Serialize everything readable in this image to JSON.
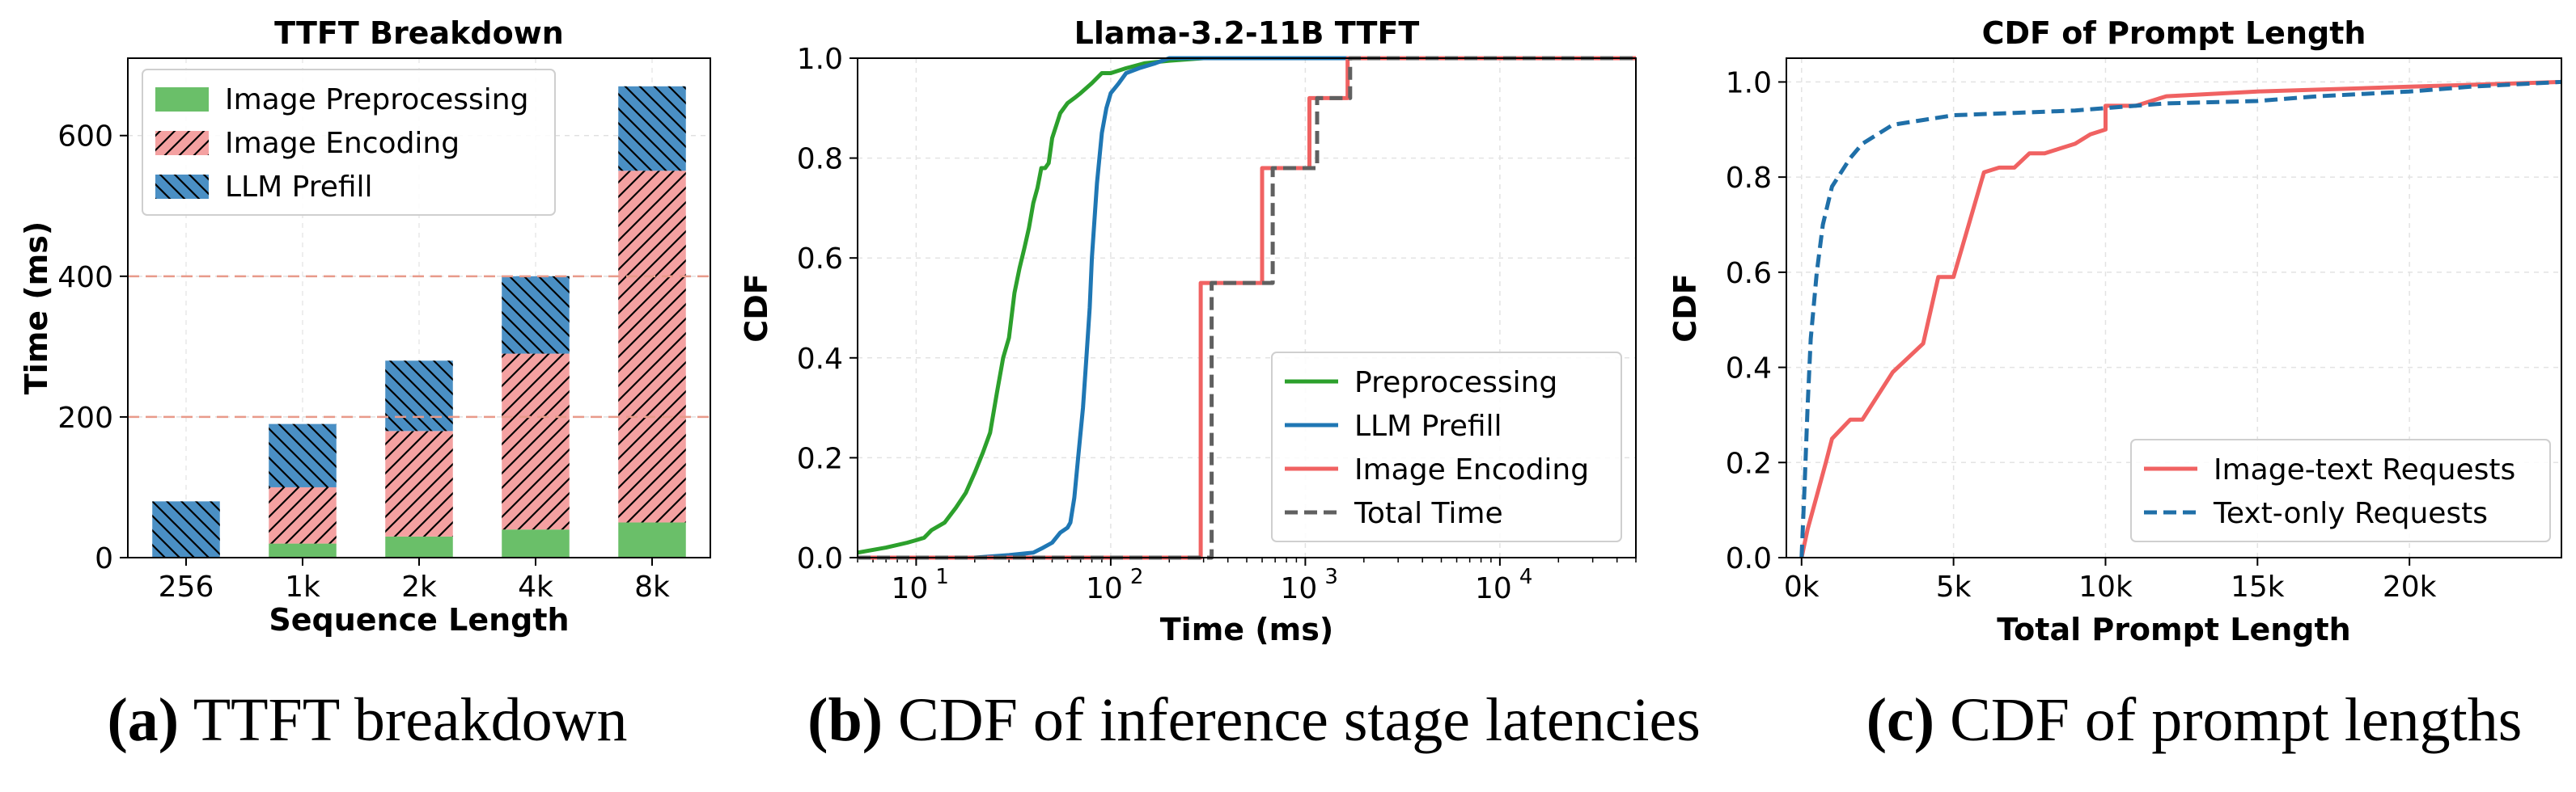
{
  "chart_data": [
    {
      "type": "bar",
      "stacked": true,
      "title": "TTFT Breakdown",
      "xlabel": "Sequence Length",
      "ylabel": "Time (ms)",
      "ylim": [
        0,
        710
      ],
      "yticks": [
        0,
        200,
        400,
        600
      ],
      "categories": [
        "256",
        "1k",
        "2k",
        "4k",
        "8k"
      ],
      "series": [
        {
          "name": "Image Preprocessing",
          "values": [
            0,
            20,
            30,
            40,
            50
          ],
          "color": "#6abf69",
          "hatch": "none"
        },
        {
          "name": "Image Encoding",
          "values": [
            0,
            80,
            150,
            250,
            500
          ],
          "color": "#f4a1a1",
          "hatch": "///"
        },
        {
          "name": "LLM Prefill",
          "values": [
            80,
            90,
            100,
            110,
            120
          ],
          "color": "#4a8fc4",
          "hatch": "\\\\\\"
        }
      ],
      "reference_lines": [
        200,
        400
      ],
      "legend": "top-left",
      "grid": true
    },
    {
      "type": "line",
      "title": "Llama-3.2-11B TTFT",
      "xlabel": "Time (ms)",
      "ylabel": "CDF",
      "xscale": "log",
      "xlim": [
        5,
        50000
      ],
      "ylim": [
        0,
        1
      ],
      "xticks": [
        {
          "value": 10,
          "label": "10",
          "exp": "1"
        },
        {
          "value": 100,
          "label": "10",
          "exp": "2"
        },
        {
          "value": 1000,
          "label": "10",
          "exp": "3"
        },
        {
          "value": 10000,
          "label": "10",
          "exp": "4"
        }
      ],
      "yticks": [
        "0.0",
        "0.2",
        "0.4",
        "0.6",
        "0.8",
        "1.0"
      ],
      "series": [
        {
          "name": "Preprocessing",
          "color": "#2ca02c",
          "dash": "solid",
          "x": [
            5,
            7,
            9,
            10,
            11,
            12,
            14,
            16,
            18,
            20,
            22,
            24,
            26,
            28,
            30,
            32,
            34,
            36,
            38,
            40,
            42,
            44,
            46,
            48,
            50,
            55,
            60,
            65,
            70,
            80,
            90,
            100,
            120,
            150,
            200,
            300,
            500,
            50000
          ],
          "y": [
            0.01,
            0.02,
            0.03,
            0.035,
            0.04,
            0.055,
            0.07,
            0.1,
            0.13,
            0.17,
            0.21,
            0.25,
            0.33,
            0.4,
            0.44,
            0.53,
            0.58,
            0.62,
            0.66,
            0.71,
            0.74,
            0.78,
            0.78,
            0.79,
            0.84,
            0.89,
            0.91,
            0.92,
            0.93,
            0.95,
            0.97,
            0.97,
            0.98,
            0.99,
            0.995,
            1.0,
            1.0,
            1.0
          ]
        },
        {
          "name": "LLM Prefill",
          "color": "#1f77b4",
          "dash": "solid",
          "x": [
            5,
            20,
            30,
            40,
            45,
            50,
            55,
            60,
            62,
            65,
            68,
            70,
            72,
            75,
            78,
            80,
            85,
            90,
            95,
            100,
            110,
            120,
            140,
            170,
            200,
            300,
            50000
          ],
          "y": [
            0.0,
            0.0,
            0.005,
            0.01,
            0.02,
            0.03,
            0.05,
            0.06,
            0.07,
            0.12,
            0.2,
            0.25,
            0.3,
            0.4,
            0.5,
            0.6,
            0.75,
            0.85,
            0.9,
            0.93,
            0.95,
            0.97,
            0.98,
            0.99,
            1.0,
            1.0,
            1.0
          ]
        },
        {
          "name": "Image Encoding",
          "color": "#f06262",
          "dash": "solid",
          "x": [
            5,
            290,
            290,
            600,
            600,
            1050,
            1050,
            1650,
            1650,
            50000
          ],
          "y": [
            0.0,
            0.0,
            0.55,
            0.55,
            0.78,
            0.78,
            0.92,
            0.92,
            1.0,
            1.0
          ]
        },
        {
          "name": "Total Time",
          "color": "#606060",
          "dash": "dashed",
          "x": [
            5,
            330,
            330,
            680,
            680,
            1150,
            1150,
            1700,
            1700,
            50000
          ],
          "y": [
            0.0,
            0.0,
            0.55,
            0.55,
            0.78,
            0.78,
            0.92,
            0.92,
            1.0,
            1.0
          ]
        }
      ],
      "legend": "bottom-right",
      "grid": true
    },
    {
      "type": "line",
      "title": "CDF of Prompt Length",
      "xlabel": "Total Prompt Length",
      "ylabel": "CDF",
      "xlim": [
        -500,
        25000
      ],
      "ylim": [
        0,
        1.05
      ],
      "xticks": [
        {
          "value": 0,
          "label": "0k"
        },
        {
          "value": 5000,
          "label": "5k"
        },
        {
          "value": 10000,
          "label": "10k"
        },
        {
          "value": 15000,
          "label": "15k"
        },
        {
          "value": 20000,
          "label": "20k"
        }
      ],
      "yticks": [
        "0.0",
        "0.2",
        "0.4",
        "0.6",
        "0.8",
        "1.0"
      ],
      "series": [
        {
          "name": "Image-text Requests",
          "color": "#f06262",
          "dash": "solid",
          "x": [
            0,
            200,
            500,
            800,
            1000,
            1300,
            1600,
            2000,
            2400,
            3000,
            3500,
            4000,
            4500,
            5000,
            5500,
            6000,
            6500,
            7000,
            7500,
            8000,
            8500,
            9000,
            9500,
            10000,
            10000,
            11000,
            12000,
            15000,
            20000,
            25000
          ],
          "y": [
            0.0,
            0.06,
            0.13,
            0.2,
            0.25,
            0.27,
            0.29,
            0.29,
            0.33,
            0.39,
            0.42,
            0.45,
            0.59,
            0.59,
            0.7,
            0.81,
            0.82,
            0.82,
            0.85,
            0.85,
            0.86,
            0.87,
            0.89,
            0.9,
            0.95,
            0.95,
            0.97,
            0.98,
            0.99,
            1.0
          ]
        },
        {
          "name": "Text-only Requests",
          "color": "#1f6fa8",
          "dash": "dashed",
          "x": [
            0,
            100,
            200,
            300,
            500,
            700,
            1000,
            1300,
            1600,
            2000,
            2500,
            3000,
            4000,
            5000,
            7000,
            9000,
            10000,
            12000,
            15000,
            17000,
            20000,
            22000,
            25000
          ],
          "y": [
            0.0,
            0.15,
            0.32,
            0.46,
            0.6,
            0.7,
            0.78,
            0.81,
            0.84,
            0.87,
            0.89,
            0.91,
            0.92,
            0.93,
            0.935,
            0.94,
            0.945,
            0.955,
            0.96,
            0.97,
            0.98,
            0.99,
            1.0
          ]
        }
      ],
      "legend": "bottom-right",
      "grid": true
    }
  ],
  "captions": [
    {
      "label": "(a)",
      "text": " TTFT breakdown"
    },
    {
      "label": "(b)",
      "text": " CDF of inference stage latencies"
    },
    {
      "label": "(c)",
      "text": " CDF of prompt lengths"
    }
  ]
}
